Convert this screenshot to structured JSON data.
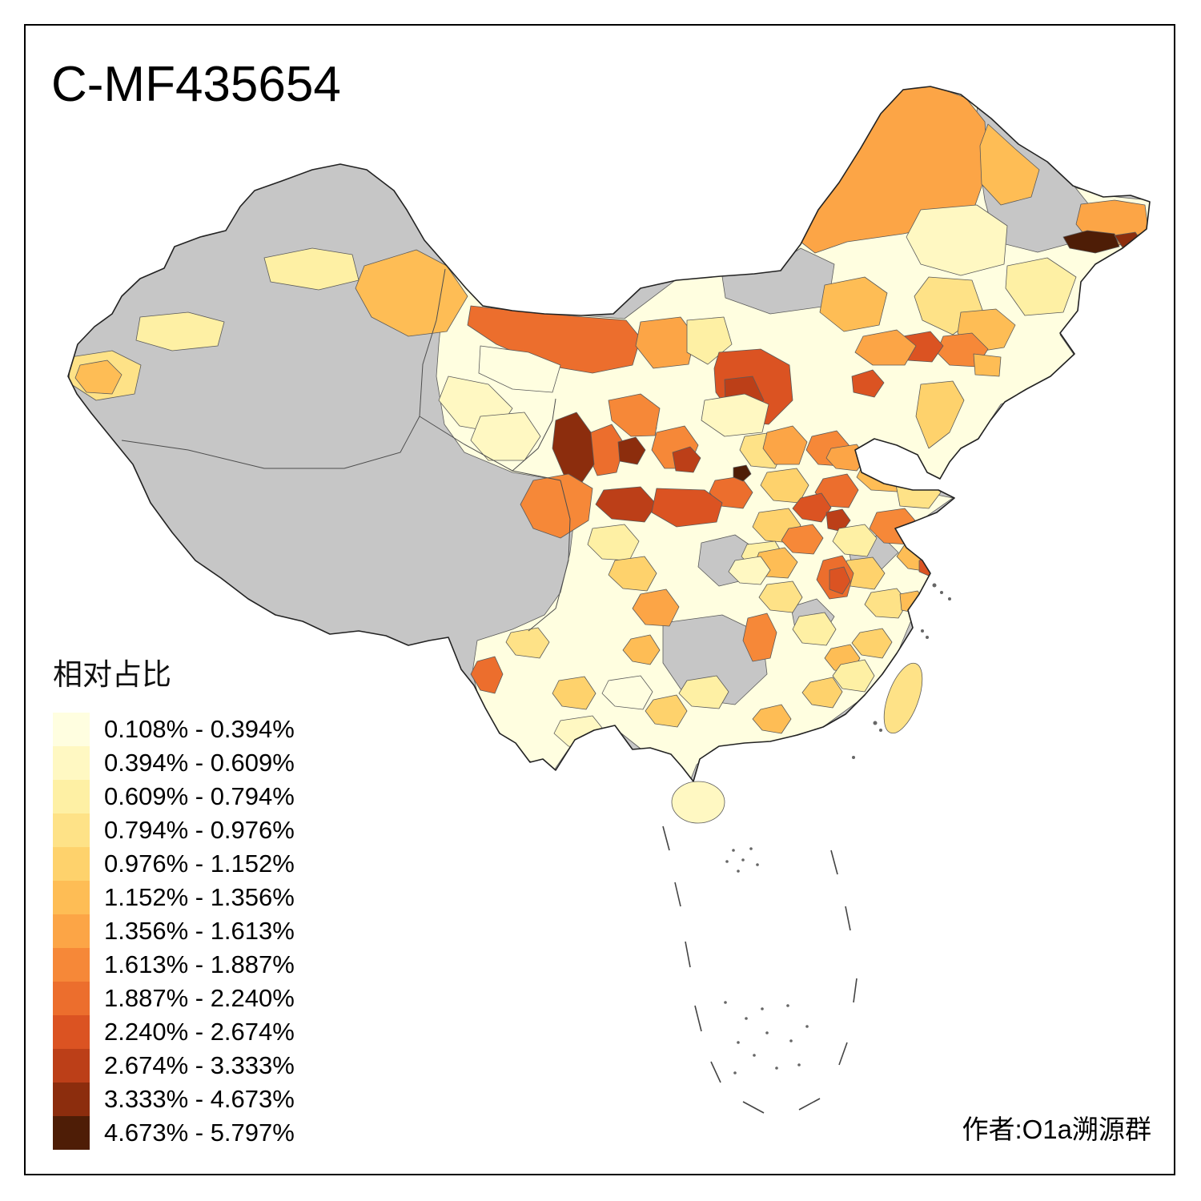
{
  "title": "C-MF435654",
  "attribution": "作者:O1a溯源群",
  "legend": {
    "title": "相对占比",
    "items": [
      {
        "label": "0.108% - 0.394%",
        "color": "#FFFEE0"
      },
      {
        "label": "0.394% - 0.609%",
        "color": "#FFF8C2"
      },
      {
        "label": "0.609% - 0.794%",
        "color": "#FEF0A4"
      },
      {
        "label": "0.794% - 0.976%",
        "color": "#FEE287"
      },
      {
        "label": "0.976% - 1.152%",
        "color": "#FED26C"
      },
      {
        "label": "1.152% - 1.356%",
        "color": "#FEBD55"
      },
      {
        "label": "1.356% - 1.613%",
        "color": "#FCA546"
      },
      {
        "label": "1.613% - 1.887%",
        "color": "#F68838"
      },
      {
        "label": "1.887% - 2.240%",
        "color": "#EC6E2D"
      },
      {
        "label": "2.240% - 2.674%",
        "color": "#DB5322"
      },
      {
        "label": "2.674% - 3.333%",
        "color": "#BC3F18"
      },
      {
        "label": "3.333% - 4.673%",
        "color": "#8C2D0D"
      },
      {
        "label": "4.673% - 5.797%",
        "color": "#4E1D06"
      }
    ]
  },
  "map": {
    "name": "china-prefecture-choropleth",
    "no_data_color": "#C6C6C6",
    "border_color": "#222222",
    "background": "#FFFFFF"
  }
}
